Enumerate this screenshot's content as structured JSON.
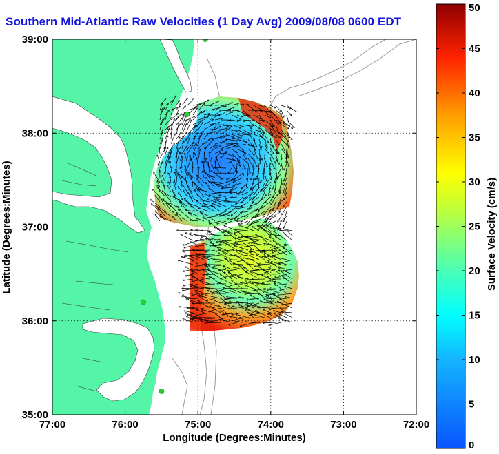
{
  "title": "Southern Mid-Atlantic Raw Velocities (1 Day Avg) 2009/08/08 0600 EDT",
  "map": {
    "x_axis": {
      "label": "Longitude (Degrees:Minutes)",
      "ticks": [
        "77:00",
        "76:00",
        "75:00",
        "74:00",
        "73:00",
        "72:00"
      ],
      "range": [
        -77,
        -72
      ]
    },
    "y_axis": {
      "label": "Latitude (Degrees:Minutes)",
      "ticks": [
        "39:00",
        "38:00",
        "37:00",
        "36:00",
        "35:00"
      ],
      "range": [
        35,
        39
      ]
    },
    "grid": "dotted",
    "colors": {
      "land": "#55f5a8",
      "water": "#ffffff",
      "bathymetry": "#9a9a9a",
      "station": "#2fcc3a",
      "vectors": "#000000"
    }
  },
  "colorbar": {
    "label": "Surface Velocity (cm/s)",
    "ticks": [
      "0",
      "5",
      "10",
      "15",
      "20",
      "25",
      "30",
      "35",
      "40",
      "45",
      "50"
    ],
    "range": [
      0,
      50
    ],
    "colormap": "jet"
  },
  "stations": [
    {
      "lon": -74.9,
      "lat": 39.0
    },
    {
      "lon": -75.15,
      "lat": 38.2
    },
    {
      "lon": -75.75,
      "lat": 36.2
    },
    {
      "lon": -75.5,
      "lat": 35.25
    }
  ]
}
